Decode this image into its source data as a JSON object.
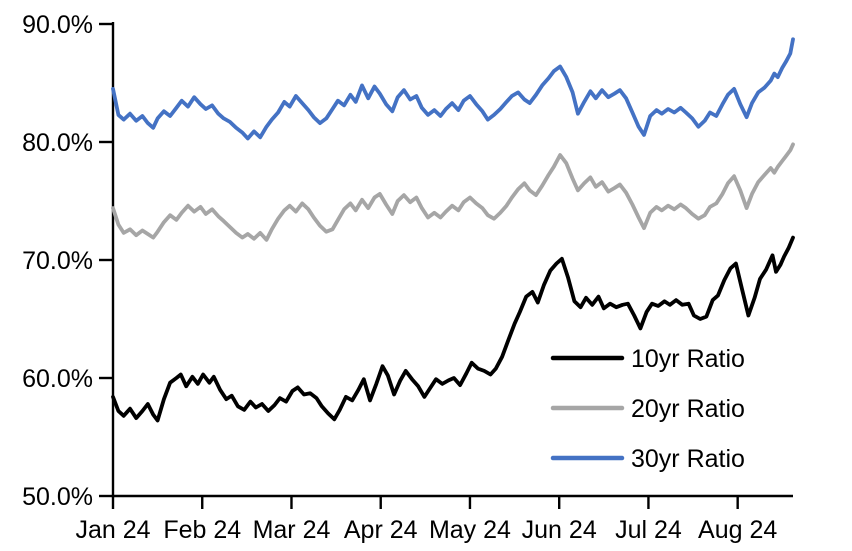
{
  "chart_data": {
    "type": "line",
    "title": "",
    "grid": false,
    "background": "#ffffff",
    "axis_color": "#000000",
    "legend_position": "inside lower right",
    "x_axis": {
      "tick_labels": [
        "Jan 24",
        "Feb 24",
        "Mar 24",
        "Apr 24",
        "May 24",
        "Jun 24",
        "Jul 24",
        "Aug 24"
      ],
      "unit": "months since Jan 1 2024",
      "range": [
        0,
        7.62
      ]
    },
    "y_axis": {
      "tick_values": [
        90,
        80,
        70,
        60,
        50
      ],
      "tick_labels": [
        "90.0%",
        "80.0%",
        "70.0%",
        "60.0%",
        "50.0%"
      ],
      "lim": [
        50,
        90
      ],
      "format": "percent"
    },
    "series": [
      {
        "name": "10yr Ratio",
        "color": "#000000",
        "x": [
          0,
          0.06,
          0.12,
          0.19,
          0.26,
          0.33,
          0.39,
          0.45,
          0.5,
          0.57,
          0.64,
          0.71,
          0.76,
          0.82,
          0.89,
          0.95,
          1.01,
          1.08,
          1.13,
          1.2,
          1.27,
          1.33,
          1.4,
          1.47,
          1.54,
          1.6,
          1.67,
          1.74,
          1.81,
          1.87,
          1.94,
          2.01,
          2.07,
          2.14,
          2.21,
          2.28,
          2.34,
          2.41,
          2.48,
          2.54,
          2.61,
          2.68,
          2.75,
          2.81,
          2.88,
          2.95,
          3.02,
          3.08,
          3.15,
          3.22,
          3.28,
          3.35,
          3.42,
          3.49,
          3.55,
          3.62,
          3.69,
          3.76,
          3.82,
          3.89,
          3.96,
          4.02,
          4.09,
          4.16,
          4.23,
          4.29,
          4.36,
          4.43,
          4.5,
          4.56,
          4.63,
          4.7,
          4.76,
          4.83,
          4.9,
          4.97,
          5.03,
          5.1,
          5.17,
          5.24,
          5.3,
          5.37,
          5.44,
          5.5,
          5.57,
          5.64,
          5.71,
          5.77,
          5.84,
          5.91,
          5.98,
          6.04,
          6.11,
          6.18,
          6.24,
          6.31,
          6.38,
          6.45,
          6.51,
          6.58,
          6.65,
          6.72,
          6.78,
          6.85,
          6.92,
          6.98,
          7.05,
          7.12,
          7.19,
          7.25,
          7.32,
          7.39,
          7.43,
          7.48,
          7.52,
          7.57,
          7.62
        ],
        "values": [
          58.4,
          57.2,
          56.8,
          57.4,
          56.6,
          57.2,
          57.8,
          56.9,
          56.4,
          58.2,
          59.6,
          60,
          60.3,
          59.3,
          60.1,
          59.5,
          60.3,
          59.6,
          60.1,
          59,
          58.2,
          58.5,
          57.6,
          57.3,
          58,
          57.5,
          57.8,
          57.2,
          57.7,
          58.3,
          58,
          58.9,
          59.2,
          58.6,
          58.7,
          58.3,
          57.6,
          57,
          56.5,
          57.3,
          58.4,
          58.1,
          59,
          59.9,
          58.1,
          59.5,
          61,
          60.2,
          58.6,
          59.8,
          60.6,
          59.9,
          59.3,
          58.4,
          59.1,
          59.9,
          59.5,
          59.8,
          60,
          59.4,
          60.4,
          61.3,
          60.8,
          60.6,
          60.3,
          60.8,
          61.8,
          63.2,
          64.6,
          65.6,
          66.9,
          67.3,
          66.4,
          67.9,
          69.1,
          69.7,
          70.1,
          68.5,
          66.5,
          66,
          66.8,
          66.2,
          66.9,
          65.9,
          66.3,
          66,
          66.2,
          66.3,
          65.3,
          64.2,
          65.6,
          66.3,
          66.1,
          66.5,
          66.2,
          66.6,
          66.2,
          66.3,
          65.3,
          65,
          65.2,
          66.6,
          67,
          68.3,
          69.3,
          69.7,
          67.5,
          65.3,
          66.8,
          68.4,
          69.2,
          70.4,
          69,
          69.6,
          70.3,
          71,
          71.9
        ]
      },
      {
        "name": "20yr Ratio",
        "color": "#A6A6A6",
        "x": [
          0,
          0.06,
          0.12,
          0.19,
          0.26,
          0.33,
          0.39,
          0.45,
          0.5,
          0.57,
          0.64,
          0.71,
          0.77,
          0.84,
          0.91,
          0.98,
          1.04,
          1.11,
          1.18,
          1.24,
          1.31,
          1.38,
          1.45,
          1.51,
          1.58,
          1.65,
          1.72,
          1.78,
          1.85,
          1.92,
          1.98,
          2.05,
          2.12,
          2.19,
          2.25,
          2.32,
          2.39,
          2.46,
          2.52,
          2.59,
          2.66,
          2.72,
          2.79,
          2.86,
          2.93,
          2.99,
          3.06,
          3.13,
          3.19,
          3.26,
          3.33,
          3.4,
          3.46,
          3.53,
          3.6,
          3.67,
          3.73,
          3.8,
          3.87,
          3.93,
          4,
          4.07,
          4.14,
          4.2,
          4.27,
          4.34,
          4.41,
          4.47,
          4.54,
          4.61,
          4.67,
          4.74,
          4.81,
          4.88,
          4.94,
          5.01,
          5.08,
          5.15,
          5.21,
          5.28,
          5.35,
          5.41,
          5.48,
          5.55,
          5.62,
          5.68,
          5.75,
          5.82,
          5.89,
          5.95,
          6.02,
          6.09,
          6.15,
          6.22,
          6.29,
          6.36,
          6.42,
          6.49,
          6.56,
          6.63,
          6.69,
          6.76,
          6.83,
          6.89,
          6.96,
          7.03,
          7.1,
          7.16,
          7.23,
          7.3,
          7.37,
          7.41,
          7.45,
          7.5,
          7.54,
          7.59,
          7.62
        ],
        "values": [
          74.4,
          73,
          72.3,
          72.6,
          72.1,
          72.5,
          72.2,
          71.9,
          72.4,
          73.2,
          73.8,
          73.4,
          74,
          74.6,
          74.1,
          74.5,
          73.9,
          74.3,
          73.7,
          73.3,
          72.8,
          72.3,
          71.9,
          72.2,
          71.8,
          72.3,
          71.7,
          72.6,
          73.5,
          74.2,
          74.6,
          74.1,
          74.8,
          74.3,
          73.6,
          72.9,
          72.4,
          72.6,
          73.4,
          74.3,
          74.8,
          74.2,
          75.1,
          74.4,
          75.3,
          75.6,
          74.7,
          73.9,
          75,
          75.5,
          74.9,
          75.3,
          74.4,
          73.6,
          74,
          73.6,
          74.1,
          74.6,
          74.2,
          74.9,
          75.3,
          74.8,
          74.4,
          73.8,
          73.5,
          74,
          74.6,
          75.3,
          76,
          76.5,
          75.9,
          75.5,
          76.3,
          77.2,
          77.9,
          78.9,
          78.2,
          76.9,
          75.9,
          76.5,
          77,
          76.2,
          76.6,
          75.8,
          76.1,
          76.4,
          75.7,
          74.7,
          73.6,
          72.7,
          74,
          74.5,
          74.2,
          74.6,
          74.3,
          74.7,
          74.4,
          73.9,
          73.5,
          73.8,
          74.5,
          74.8,
          75.6,
          76.5,
          77.1,
          75.9,
          74.4,
          75.6,
          76.6,
          77.2,
          77.8,
          77.4,
          77.9,
          78.4,
          78.8,
          79.3,
          79.8
        ]
      },
      {
        "name": "30yr Ratio",
        "color": "#4472C4",
        "x": [
          0,
          0.06,
          0.12,
          0.19,
          0.26,
          0.33,
          0.39,
          0.45,
          0.5,
          0.57,
          0.64,
          0.71,
          0.77,
          0.84,
          0.91,
          0.98,
          1.04,
          1.11,
          1.18,
          1.24,
          1.31,
          1.38,
          1.45,
          1.51,
          1.58,
          1.65,
          1.72,
          1.78,
          1.85,
          1.92,
          1.98,
          2.05,
          2.12,
          2.19,
          2.25,
          2.32,
          2.39,
          2.46,
          2.52,
          2.59,
          2.66,
          2.72,
          2.79,
          2.86,
          2.93,
          2.99,
          3.06,
          3.13,
          3.19,
          3.26,
          3.33,
          3.4,
          3.46,
          3.53,
          3.6,
          3.67,
          3.73,
          3.8,
          3.87,
          3.93,
          4,
          4.07,
          4.14,
          4.2,
          4.27,
          4.34,
          4.41,
          4.47,
          4.54,
          4.61,
          4.67,
          4.74,
          4.81,
          4.88,
          4.94,
          5.01,
          5.08,
          5.15,
          5.21,
          5.28,
          5.35,
          5.41,
          5.48,
          5.55,
          5.62,
          5.68,
          5.75,
          5.82,
          5.89,
          5.95,
          6.02,
          6.09,
          6.15,
          6.22,
          6.29,
          6.36,
          6.42,
          6.49,
          6.56,
          6.63,
          6.69,
          6.76,
          6.83,
          6.89,
          6.96,
          7.03,
          7.1,
          7.16,
          7.23,
          7.3,
          7.37,
          7.41,
          7.45,
          7.5,
          7.54,
          7.59,
          7.62
        ],
        "values": [
          84.5,
          82.3,
          81.9,
          82.4,
          81.8,
          82.2,
          81.6,
          81.2,
          82,
          82.6,
          82.2,
          82.9,
          83.5,
          83,
          83.8,
          83.2,
          82.8,
          83.1,
          82.4,
          82,
          81.7,
          81.2,
          80.8,
          80.3,
          80.9,
          80.4,
          81.3,
          81.9,
          82.5,
          83.4,
          83,
          83.9,
          83.3,
          82.7,
          82.1,
          81.6,
          82,
          82.8,
          83.5,
          83.1,
          84,
          83.4,
          84.8,
          83.7,
          84.7,
          84.1,
          83.2,
          82.6,
          83.8,
          84.4,
          83.6,
          83.9,
          82.9,
          82.3,
          82.7,
          82.2,
          82.8,
          83.3,
          82.7,
          83.5,
          83.9,
          83.2,
          82.6,
          81.9,
          82.3,
          82.8,
          83.4,
          83.9,
          84.2,
          83.6,
          83.3,
          84,
          84.8,
          85.4,
          86,
          86.4,
          85.5,
          84.2,
          82.4,
          83.4,
          84.3,
          83.7,
          84.4,
          83.8,
          84.1,
          84.4,
          83.7,
          82.5,
          81.3,
          80.6,
          82.2,
          82.7,
          82.4,
          82.8,
          82.5,
          82.9,
          82.5,
          82,
          81.3,
          81.8,
          82.5,
          82.2,
          83.2,
          84,
          84.5,
          83.2,
          82.1,
          83.3,
          84.2,
          84.6,
          85.2,
          85.8,
          85.5,
          86.3,
          86.8,
          87.5,
          88.7
        ]
      }
    ]
  }
}
